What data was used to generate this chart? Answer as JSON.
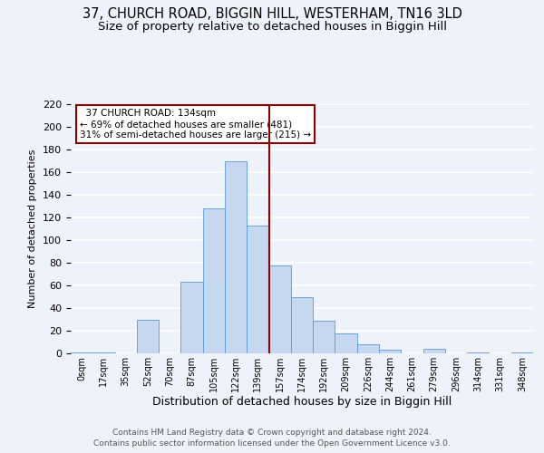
{
  "title_line1": "37, CHURCH ROAD, BIGGIN HILL, WESTERHAM, TN16 3LD",
  "title_line2": "Size of property relative to detached houses in Biggin Hill",
  "xlabel": "Distribution of detached houses by size in Biggin Hill",
  "ylabel": "Number of detached properties",
  "footnote1": "Contains HM Land Registry data © Crown copyright and database right 2024.",
  "footnote2": "Contains public sector information licensed under the Open Government Licence v3.0.",
  "bar_labels": [
    "0sqm",
    "17sqm",
    "35sqm",
    "52sqm",
    "70sqm",
    "87sqm",
    "105sqm",
    "122sqm",
    "139sqm",
    "157sqm",
    "174sqm",
    "192sqm",
    "209sqm",
    "226sqm",
    "244sqm",
    "261sqm",
    "279sqm",
    "296sqm",
    "314sqm",
    "331sqm",
    "348sqm"
  ],
  "bar_values": [
    1,
    1,
    0,
    30,
    0,
    63,
    128,
    170,
    113,
    78,
    50,
    29,
    18,
    8,
    3,
    0,
    4,
    0,
    1,
    0,
    1
  ],
  "bar_color": "#c5d8f0",
  "bar_edge_color": "#5b9bd5",
  "vline_x": 8.5,
  "vline_color": "#8b0000",
  "annotation_title": "37 CHURCH ROAD: 134sqm",
  "annotation_line1": "← 69% of detached houses are smaller (481)",
  "annotation_line2": "31% of semi-detached houses are larger (215) →",
  "annotation_box_color": "#ffffff",
  "annotation_box_edge": "#8b0000",
  "ylim": [
    0,
    220
  ],
  "background_color": "#eef2fa",
  "grid_color": "#ffffff",
  "title_fontsize": 10.5,
  "subtitle_fontsize": 9.5
}
